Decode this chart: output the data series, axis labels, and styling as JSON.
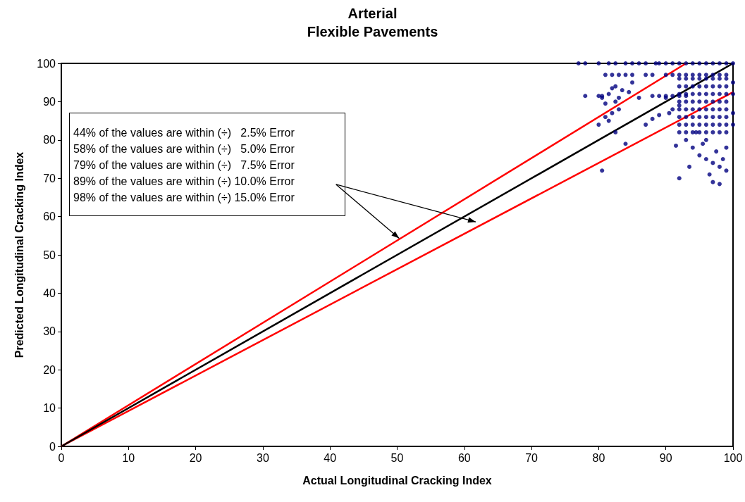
{
  "chart_data": {
    "type": "scatter",
    "title": "Arterial",
    "subtitle": "Flexible Pavements",
    "xlabel": "Actual Longitudinal Cracking Index",
    "ylabel": "Predicted Longitudinal Cracking Index",
    "annotations": [
      "44% of the values are within (÷)   2.5% Error",
      "58% of the values are within (÷)   5.0% Error",
      "79% of the values are within (÷)   7.5% Error",
      "89% of the values are within (÷) 10.0% Error",
      "98% of the values are within (÷) 15.0% Error"
    ],
    "xlim": [
      0,
      100
    ],
    "ylim": [
      0,
      100
    ],
    "xticks": [
      0,
      10,
      20,
      30,
      40,
      50,
      60,
      70,
      80,
      90,
      100
    ],
    "yticks": [
      0,
      10,
      20,
      30,
      40,
      50,
      60,
      70,
      80,
      90,
      100
    ],
    "series": [
      {
        "type": "line",
        "color": "#ff0000",
        "x": [
          0,
          93
        ],
        "values": [
          0,
          100
        ]
      },
      {
        "type": "line",
        "color": "#ff0000",
        "x": [
          0,
          100
        ],
        "values": [
          0,
          92.5
        ]
      },
      {
        "type": "line",
        "color": "#000000",
        "x": [
          0,
          100
        ],
        "values": [
          0,
          100
        ]
      },
      {
        "marker": "circle",
        "color": "#000080",
        "x": [
          77,
          78,
          80,
          81.5,
          82.5,
          84,
          85,
          86,
          87,
          88.5,
          89,
          90,
          91,
          92,
          93,
          94,
          95,
          96,
          97,
          98,
          99,
          100,
          81,
          82,
          83,
          84,
          85,
          87,
          88,
          90,
          91,
          92,
          93,
          94,
          95,
          96,
          97,
          98,
          99,
          78,
          80,
          80.5,
          88,
          89,
          90,
          91,
          92,
          93,
          80.5,
          81,
          81.5,
          82,
          82.5,
          83,
          83.5,
          82,
          81,
          80,
          81.5,
          82.5,
          84,
          82.5,
          83,
          80.5,
          85,
          86,
          84.5,
          87,
          88,
          89,
          90,
          90.5,
          91,
          92,
          92,
          92,
          92,
          92,
          92,
          92,
          92,
          92,
          93,
          93,
          93,
          93,
          93,
          93,
          93,
          93,
          94,
          94,
          94,
          94,
          94,
          94,
          94,
          94,
          95,
          95,
          95,
          95,
          95,
          95,
          95,
          95,
          96,
          96,
          96,
          96,
          96,
          96,
          96,
          96,
          97,
          97,
          97,
          97,
          97,
          97,
          97,
          97,
          98,
          98,
          98,
          98,
          98,
          98,
          98,
          98,
          99,
          99,
          99,
          99,
          99,
          99,
          99,
          99,
          93,
          94,
          95,
          96,
          97,
          98,
          99,
          92,
          93.5,
          96.5,
          97,
          98,
          94.5,
          95.5,
          97.5,
          99,
          98.5,
          91.5,
          96,
          100,
          100,
          100,
          100
        ],
        "values": [
          100,
          100,
          100,
          100,
          100,
          100,
          100,
          100,
          100,
          100,
          100,
          100,
          100,
          100,
          100,
          100,
          100,
          100,
          100,
          100,
          100,
          100,
          97,
          97,
          97,
          97,
          97,
          97,
          97,
          97,
          97,
          97,
          97,
          97,
          97,
          97,
          97,
          97,
          97,
          91.5,
          91.5,
          91.5,
          91.5,
          91.5,
          91.5,
          91.5,
          91.5,
          91.5,
          91,
          89.5,
          92,
          93.5,
          90,
          88,
          93,
          87,
          86,
          84,
          85,
          82,
          79,
          94,
          91,
          72,
          95,
          91,
          92.5,
          84,
          85.5,
          86.5,
          91,
          87,
          88,
          89,
          82,
          84,
          86,
          88,
          90,
          92,
          94,
          96,
          82,
          84,
          86,
          88,
          90,
          92,
          94,
          96,
          82,
          84,
          86,
          88,
          90,
          92,
          94,
          96,
          82,
          84,
          86,
          88,
          90,
          92,
          94,
          96,
          82,
          84,
          86,
          88,
          90,
          92,
          94,
          96,
          82,
          84,
          86,
          88,
          90,
          92,
          94,
          96,
          82,
          84,
          86,
          88,
          90,
          92,
          94,
          96,
          82,
          84,
          86,
          88,
          90,
          92,
          94,
          96,
          80,
          78,
          76,
          75,
          74,
          73,
          72,
          70,
          73,
          71,
          69,
          68.5,
          82,
          79,
          77,
          78,
          75,
          78.5,
          80,
          95,
          92,
          87,
          84
        ]
      }
    ]
  }
}
